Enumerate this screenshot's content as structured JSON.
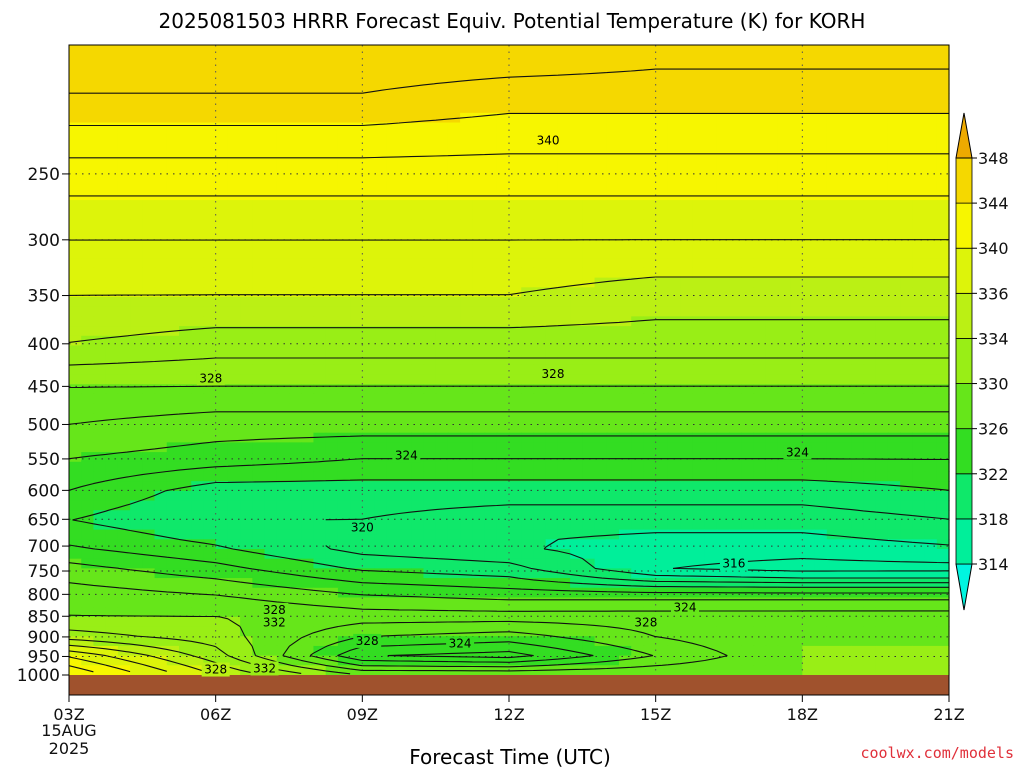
{
  "chart_data": {
    "type": "heatmap",
    "title": "2025081503 HRRR Forecast Equiv. Potential Temperature (K) for KORH",
    "xlabel": "Forecast Time (UTC)",
    "ylabel": "",
    "y_scale": "log-pressure",
    "y_inverted": true,
    "ylim": [
      1000,
      175
    ],
    "xlim": [
      "03Z",
      "21Z"
    ],
    "x_ticks": [
      {
        "label": "03Z",
        "hour": 3
      },
      {
        "label": "06Z",
        "hour": 6
      },
      {
        "label": "09Z",
        "hour": 9
      },
      {
        "label": "12Z",
        "hour": 12
      },
      {
        "label": "15Z",
        "hour": 15
      },
      {
        "label": "18Z",
        "hour": 18
      },
      {
        "label": "21Z",
        "hour": 21
      }
    ],
    "start_date_label": [
      "15AUG",
      "2025"
    ],
    "y_ticks": [
      {
        "label": "250",
        "value": 250
      },
      {
        "label": "300",
        "value": 300
      },
      {
        "label": "350",
        "value": 350
      },
      {
        "label": "400",
        "value": 400
      },
      {
        "label": "450",
        "value": 450
      },
      {
        "label": "500",
        "value": 500
      },
      {
        "label": "550",
        "value": 550
      },
      {
        "label": "600",
        "value": 600
      },
      {
        "label": "650",
        "value": 650
      },
      {
        "label": "700",
        "value": 700
      },
      {
        "label": "750",
        "value": 750
      },
      {
        "label": "800",
        "value": 800
      },
      {
        "label": "850",
        "value": 850
      },
      {
        "label": "900",
        "value": 900
      },
      {
        "label": "950",
        "value": 950
      },
      {
        "label": "1000",
        "value": 1000
      }
    ],
    "grid": true,
    "colorbar": {
      "levels": [
        314,
        318,
        322,
        326,
        330,
        334,
        336,
        340,
        344,
        348
      ],
      "labels": [
        "314",
        "318",
        "322",
        "326",
        "330",
        "334",
        "336",
        "340",
        "344",
        "348"
      ],
      "colors": [
        "#00f5e0",
        "#00ef9a",
        "#0fe86a",
        "#33dd22",
        "#66e61a",
        "#99ee16",
        "#bbf014",
        "#ddf40a",
        "#f7f600",
        "#f5d800",
        "#eeaa00"
      ],
      "placement": "right"
    },
    "profiles": [
      {
        "hour": 3,
        "points": [
          [
            1000,
            344
          ],
          [
            950,
            340
          ],
          [
            900,
            333
          ],
          [
            850,
            330
          ],
          [
            800,
            329
          ],
          [
            750,
            327
          ],
          [
            700,
            324
          ],
          [
            650,
            322
          ],
          [
            600,
            324
          ],
          [
            550,
            326
          ],
          [
            500,
            328
          ],
          [
            450,
            330
          ],
          [
            400,
            334
          ],
          [
            350,
            336
          ],
          [
            300,
            338
          ],
          [
            250,
            341
          ],
          [
            200,
            346
          ],
          [
            175,
            348
          ]
        ]
      },
      {
        "hour": 6,
        "points": [
          [
            1000,
            336
          ],
          [
            950,
            333
          ],
          [
            900,
            331
          ],
          [
            850,
            330
          ],
          [
            800,
            328
          ],
          [
            750,
            325
          ],
          [
            700,
            322
          ],
          [
            650,
            320
          ],
          [
            600,
            321
          ],
          [
            550,
            325
          ],
          [
            500,
            327
          ],
          [
            450,
            330
          ],
          [
            400,
            333
          ],
          [
            350,
            336
          ],
          [
            300,
            338
          ],
          [
            250,
            341
          ],
          [
            200,
            346
          ],
          [
            175,
            348
          ]
        ]
      },
      {
        "hour": 9,
        "points": [
          [
            1000,
            330
          ],
          [
            950,
            322
          ],
          [
            900,
            326
          ],
          [
            850,
            329
          ],
          [
            800,
            326
          ],
          [
            750,
            322
          ],
          [
            700,
            319
          ],
          [
            650,
            320
          ],
          [
            600,
            321
          ],
          [
            550,
            324
          ],
          [
            500,
            327
          ],
          [
            450,
            330
          ],
          [
            400,
            333
          ],
          [
            350,
            336
          ],
          [
            300,
            338
          ],
          [
            250,
            341
          ],
          [
            200,
            346
          ],
          [
            175,
            348
          ]
        ]
      },
      {
        "hour": 12,
        "points": [
          [
            1000,
            330
          ],
          [
            950,
            321
          ],
          [
            900,
            325
          ],
          [
            850,
            329
          ],
          [
            800,
            325
          ],
          [
            750,
            321
          ],
          [
            700,
            318
          ],
          [
            650,
            319
          ],
          [
            600,
            321
          ],
          [
            550,
            324
          ],
          [
            500,
            327
          ],
          [
            450,
            330
          ],
          [
            400,
            333
          ],
          [
            350,
            336
          ],
          [
            300,
            338
          ],
          [
            250,
            341
          ],
          [
            200,
            345
          ],
          [
            175,
            348
          ]
        ]
      },
      {
        "hour": 15,
        "points": [
          [
            1000,
            330
          ],
          [
            950,
            326
          ],
          [
            900,
            328
          ],
          [
            850,
            329
          ],
          [
            800,
            325
          ],
          [
            750,
            316
          ],
          [
            700,
            317
          ],
          [
            650,
            319
          ],
          [
            600,
            321
          ],
          [
            550,
            324
          ],
          [
            500,
            327
          ],
          [
            450,
            330
          ],
          [
            400,
            333
          ],
          [
            350,
            335
          ],
          [
            300,
            338
          ],
          [
            250,
            341
          ],
          [
            200,
            345
          ],
          [
            175,
            347
          ]
        ]
      },
      {
        "hour": 18,
        "points": [
          [
            1000,
            330
          ],
          [
            950,
            330
          ],
          [
            900,
            330
          ],
          [
            850,
            329
          ],
          [
            800,
            325
          ],
          [
            750,
            315
          ],
          [
            700,
            317
          ],
          [
            650,
            319
          ],
          [
            600,
            321
          ],
          [
            550,
            324
          ],
          [
            500,
            327
          ],
          [
            450,
            330
          ],
          [
            400,
            333
          ],
          [
            350,
            335
          ],
          [
            300,
            338
          ],
          [
            250,
            341
          ],
          [
            200,
            345
          ],
          [
            175,
            347
          ]
        ]
      },
      {
        "hour": 21,
        "points": [
          [
            1000,
            330
          ],
          [
            950,
            330
          ],
          [
            900,
            330
          ],
          [
            850,
            329
          ],
          [
            800,
            325
          ],
          [
            750,
            315
          ],
          [
            700,
            318
          ],
          [
            650,
            320
          ],
          [
            600,
            322
          ],
          [
            550,
            324
          ],
          [
            500,
            327
          ],
          [
            450,
            330
          ],
          [
            400,
            333
          ],
          [
            350,
            335
          ],
          [
            300,
            338
          ],
          [
            250,
            341
          ],
          [
            200,
            345
          ],
          [
            175,
            347
          ]
        ]
      }
    ],
    "contour_interval": 2,
    "contour_labels": [
      {
        "text": "340",
        "hour": 12.8,
        "pressure": 228
      },
      {
        "text": "328",
        "hour": 5.9,
        "pressure": 440
      },
      {
        "text": "328",
        "hour": 12.9,
        "pressure": 435
      },
      {
        "text": "324",
        "hour": 9.9,
        "pressure": 545
      },
      {
        "text": "324",
        "hour": 17.9,
        "pressure": 540
      },
      {
        "text": "320",
        "hour": 9.0,
        "pressure": 665
      },
      {
        "text": "316",
        "hour": 16.6,
        "pressure": 735
      },
      {
        "text": "324",
        "hour": 15.6,
        "pressure": 830
      },
      {
        "text": "328",
        "hour": 7.2,
        "pressure": 835
      },
      {
        "text": "332",
        "hour": 7.2,
        "pressure": 865
      },
      {
        "text": "328",
        "hour": 14.8,
        "pressure": 865
      },
      {
        "text": "328",
        "hour": 9.1,
        "pressure": 910
      },
      {
        "text": "324",
        "hour": 11.0,
        "pressure": 917
      },
      {
        "text": "328",
        "hour": 6.0,
        "pressure": 985
      },
      {
        "text": "332",
        "hour": 7.0,
        "pressure": 982
      }
    ],
    "ground_color": "#a0522d"
  },
  "credit": "coolwx.com/models"
}
